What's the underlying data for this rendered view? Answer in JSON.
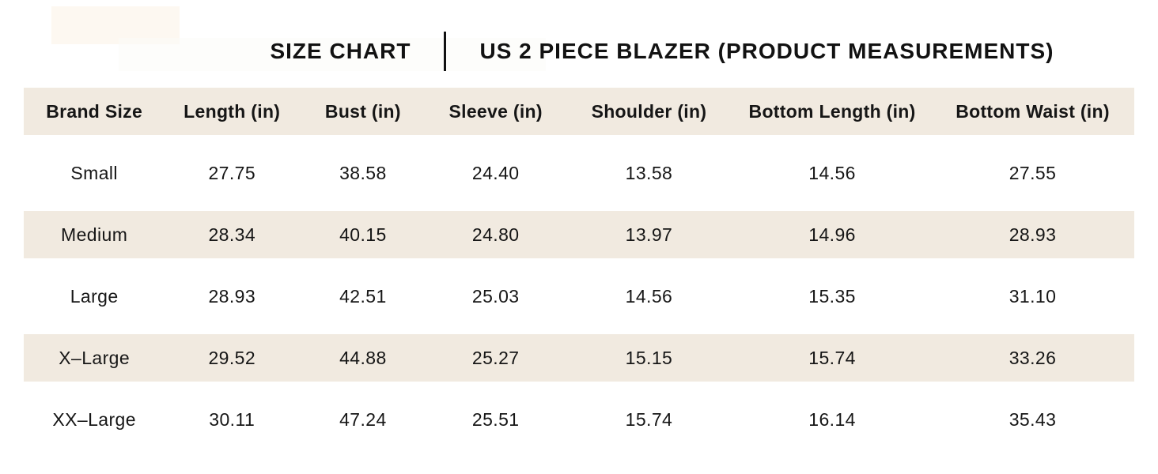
{
  "title": {
    "left": "SIZE CHART",
    "right": "US 2 PIECE BLAZER (PRODUCT MEASUREMENTS)"
  },
  "colors": {
    "row_beige": "#f1eae0",
    "text": "#161616",
    "background": "#ffffff"
  },
  "chart_data": {
    "type": "table",
    "title": "SIZE CHART",
    "subtitle": "US 2 PIECE BLAZER (PRODUCT MEASUREMENTS)",
    "columns": [
      "Brand Size",
      "Length (in)",
      "Bust (in)",
      "Sleeve (in)",
      "Shoulder (in)",
      "Bottom Length (in)",
      "Bottom Waist (in)"
    ],
    "rows": [
      [
        "Small",
        "27.75",
        "38.58",
        "24.40",
        "13.58",
        "14.56",
        "27.55"
      ],
      [
        "Medium",
        "28.34",
        "40.15",
        "24.80",
        "13.97",
        "14.96",
        "28.93"
      ],
      [
        "Large",
        "28.93",
        "42.51",
        "25.03",
        "14.56",
        "15.35",
        "31.10"
      ],
      [
        "X–Large",
        "29.52",
        "44.88",
        "25.27",
        "15.15",
        "15.74",
        "33.26"
      ],
      [
        "XX–Large",
        "30.11",
        "47.24",
        "25.51",
        "15.74",
        "16.14",
        "35.43"
      ]
    ],
    "layout": {
      "striped_rows": "header, Medium and X–Large rows shaded beige; others white",
      "grid_lines": "none",
      "text_alignment": "center"
    }
  }
}
